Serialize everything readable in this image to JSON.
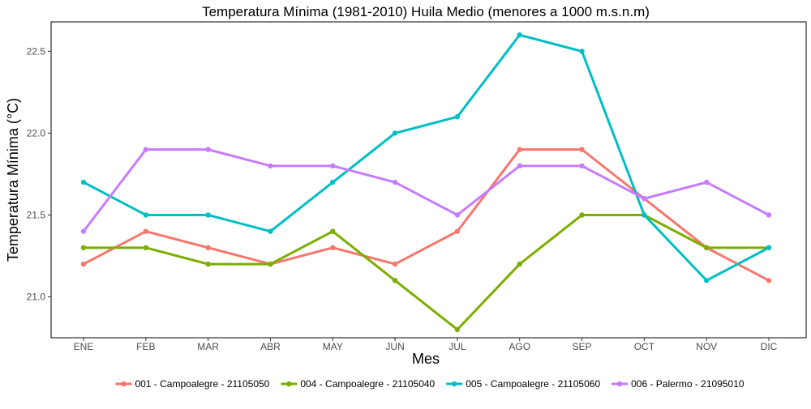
{
  "chart_data": {
    "type": "line",
    "title": "Temperatura Mínima (1981-2010) Huila Medio (menores a 1000 m.s.n.m)",
    "xlabel": "Mes",
    "ylabel": "Temperatura Mínima (°C)",
    "categories": [
      "ENE",
      "FEB",
      "MAR",
      "ABR",
      "MAY",
      "JUN",
      "JUL",
      "AGO",
      "SEP",
      "OCT",
      "NOV",
      "DIC"
    ],
    "ylim": [
      20.75,
      22.68
    ],
    "yticks": [
      21.0,
      21.5,
      22.0,
      22.5
    ],
    "ytick_labels": [
      "21.0",
      "21.5",
      "22.0",
      "22.5"
    ],
    "grid": false,
    "legend_position": "bottom",
    "series": [
      {
        "name": "001 - Campoalegre - 21105050",
        "color": "#F8766D",
        "values": [
          21.2,
          21.4,
          21.3,
          21.2,
          21.3,
          21.2,
          21.4,
          21.9,
          21.9,
          21.6,
          21.3,
          21.1
        ]
      },
      {
        "name": "004 - Campoalegre - 21105040",
        "color": "#7CAE00",
        "values": [
          21.3,
          21.3,
          21.2,
          21.2,
          21.4,
          21.1,
          20.8,
          21.2,
          21.5,
          21.5,
          21.3,
          21.3
        ]
      },
      {
        "name": "005 - Campoalegre - 21105060",
        "color": "#00BFC4",
        "values": [
          21.7,
          21.5,
          21.5,
          21.4,
          21.7,
          22.0,
          22.1,
          22.6,
          22.5,
          21.5,
          21.1,
          21.3
        ]
      },
      {
        "name": "006 - Palermo - 21095010",
        "color": "#C77CFF",
        "values": [
          21.4,
          21.9,
          21.9,
          21.8,
          21.8,
          21.7,
          21.5,
          21.8,
          21.8,
          21.6,
          21.7,
          21.5
        ]
      }
    ]
  }
}
